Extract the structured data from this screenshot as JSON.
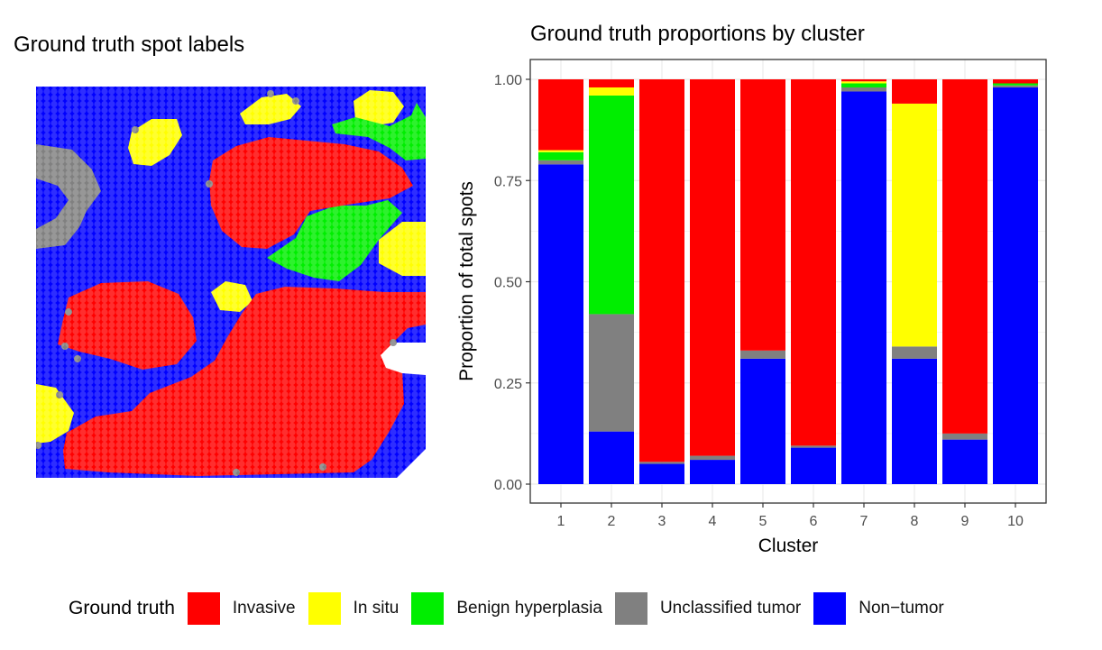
{
  "left_panel": {
    "title": "Ground truth spot labels"
  },
  "legend": {
    "title": "Ground truth",
    "items": [
      {
        "label": "Invasive",
        "color": "#FF0000"
      },
      {
        "label": "In situ",
        "color": "#FFFF00"
      },
      {
        "label": "Benign hyperplasia",
        "color": "#00EE00"
      },
      {
        "label": "Unclassified tumor",
        "color": "#808080"
      },
      {
        "label": "Non−tumor",
        "color": "#0000FF"
      }
    ]
  },
  "chart_data": {
    "type": "bar",
    "stacked": true,
    "title": "Ground truth proportions by cluster",
    "xlabel": "Cluster",
    "ylabel": "Proportion of total spots",
    "ylim": [
      0,
      1
    ],
    "yticks": [
      "0.00",
      "0.25",
      "0.50",
      "0.75",
      "1.00"
    ],
    "grid": true,
    "categories": [
      "1",
      "2",
      "3",
      "4",
      "5",
      "6",
      "7",
      "8",
      "9",
      "10"
    ],
    "series": [
      {
        "name": "Non−tumor",
        "color": "#0000FF",
        "values": [
          0.79,
          0.13,
          0.05,
          0.06,
          0.31,
          0.09,
          0.97,
          0.31,
          0.11,
          0.98
        ]
      },
      {
        "name": "Unclassified tumor",
        "color": "#808080",
        "values": [
          0.01,
          0.29,
          0.005,
          0.01,
          0.02,
          0.005,
          0.01,
          0.03,
          0.015,
          0.005
        ]
      },
      {
        "name": "Benign hyperplasia",
        "color": "#00EE00",
        "values": [
          0.02,
          0.54,
          0,
          0,
          0,
          0,
          0.01,
          0,
          0,
          0.005
        ]
      },
      {
        "name": "In situ",
        "color": "#FFFF00",
        "values": [
          0.005,
          0.02,
          0,
          0,
          0,
          0,
          0.005,
          0.6,
          0,
          0
        ]
      },
      {
        "name": "Invasive",
        "color": "#FF0000",
        "values": [
          0.175,
          0.02,
          0.945,
          0.93,
          0.67,
          0.905,
          0.005,
          0.06,
          0.875,
          0.01
        ]
      }
    ]
  }
}
